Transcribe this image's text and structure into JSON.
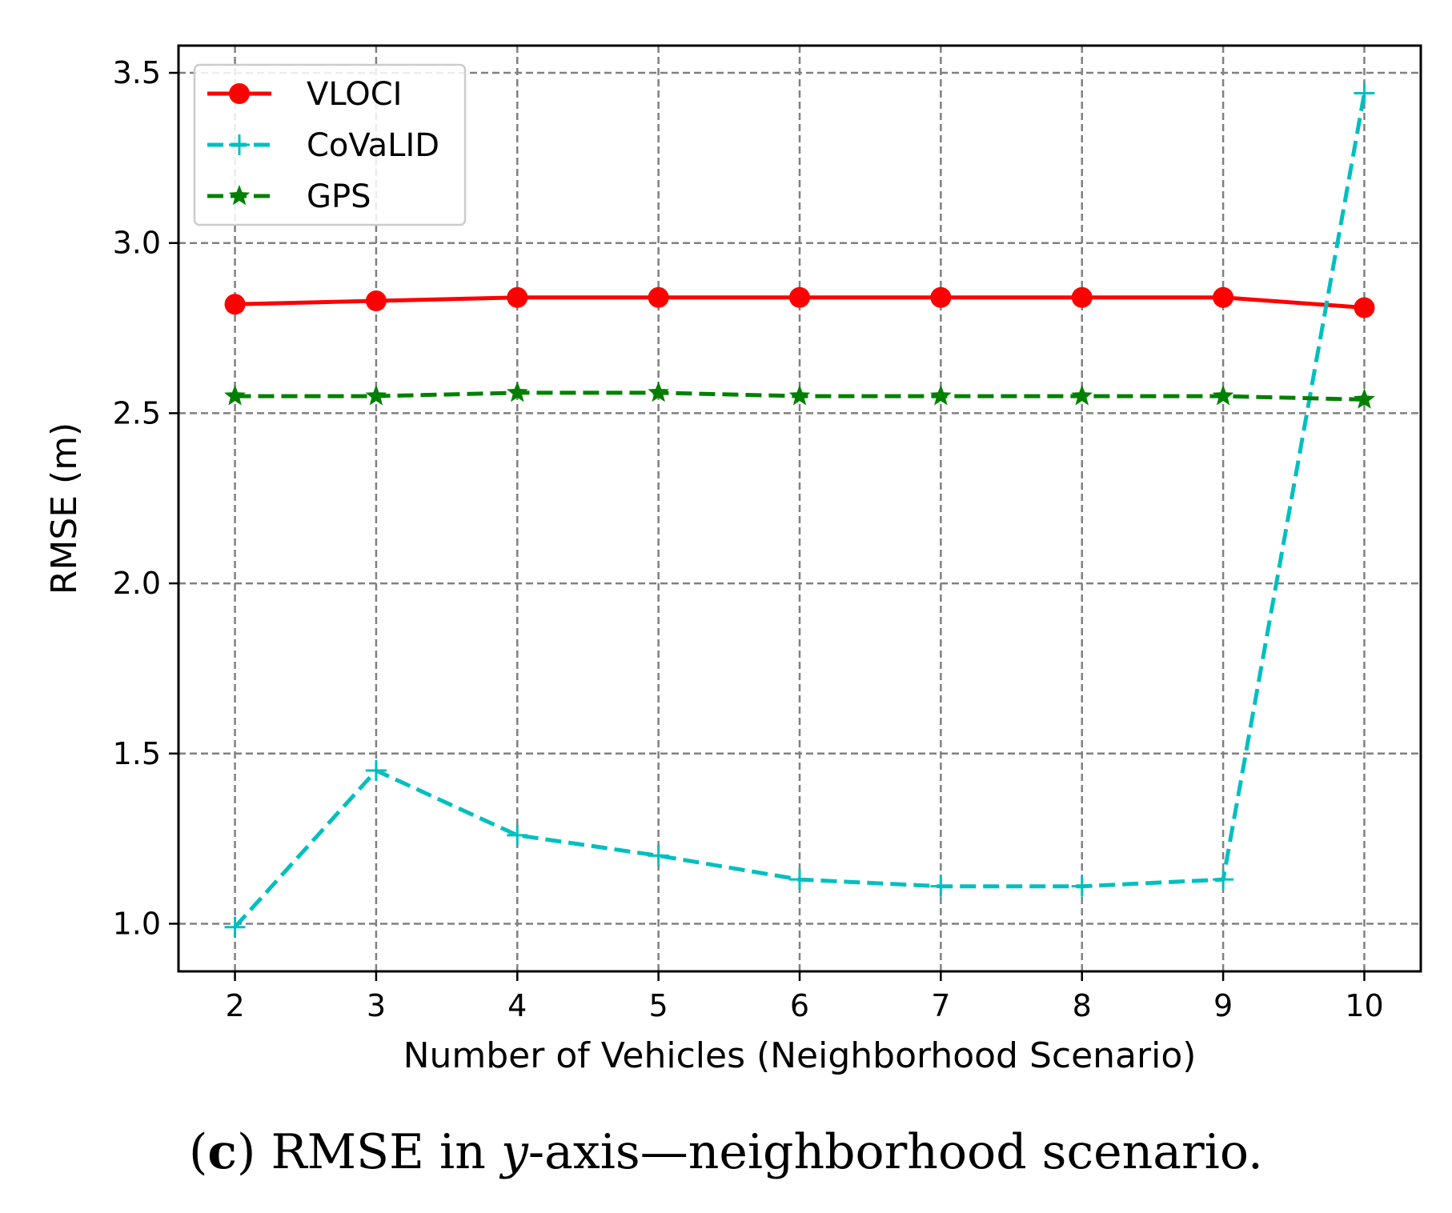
{
  "chart_data": {
    "type": "line",
    "title": "",
    "xlabel": "Number of Vehicles (Neighborhood Scenario)",
    "ylabel": "RMSE (m)",
    "x": [
      2,
      3,
      4,
      5,
      6,
      7,
      8,
      9,
      10
    ],
    "xticks": [
      "2",
      "3",
      "4",
      "5",
      "6",
      "7",
      "8",
      "9",
      "10"
    ],
    "yticks": [
      "1.0",
      "1.5",
      "2.0",
      "2.5",
      "3.0",
      "3.5"
    ],
    "xlim": [
      1.6,
      10.4
    ],
    "ylim": [
      0.86,
      3.58
    ],
    "grid": true,
    "legend_position": "top-left",
    "series": [
      {
        "name": "VLOCI",
        "color": "#ff0000",
        "style": "solid",
        "marker": "circle",
        "values": [
          2.82,
          2.83,
          2.84,
          2.84,
          2.84,
          2.84,
          2.84,
          2.84,
          2.81
        ]
      },
      {
        "name": "CoVaLID",
        "color": "#00bfbf",
        "style": "dashed",
        "marker": "plus",
        "values": [
          0.99,
          1.45,
          1.26,
          1.2,
          1.13,
          1.11,
          1.11,
          1.13,
          3.44
        ]
      },
      {
        "name": "GPS",
        "color": "#008000",
        "style": "dashed",
        "marker": "star",
        "values": [
          2.55,
          2.55,
          2.56,
          2.56,
          2.55,
          2.55,
          2.55,
          2.55,
          2.54
        ]
      }
    ]
  },
  "caption": {
    "open": "(",
    "letter": "c",
    "close": ") ",
    "text1": "RMSE in ",
    "italic": "y",
    "text2": "-axis—neighborhood scenario."
  }
}
